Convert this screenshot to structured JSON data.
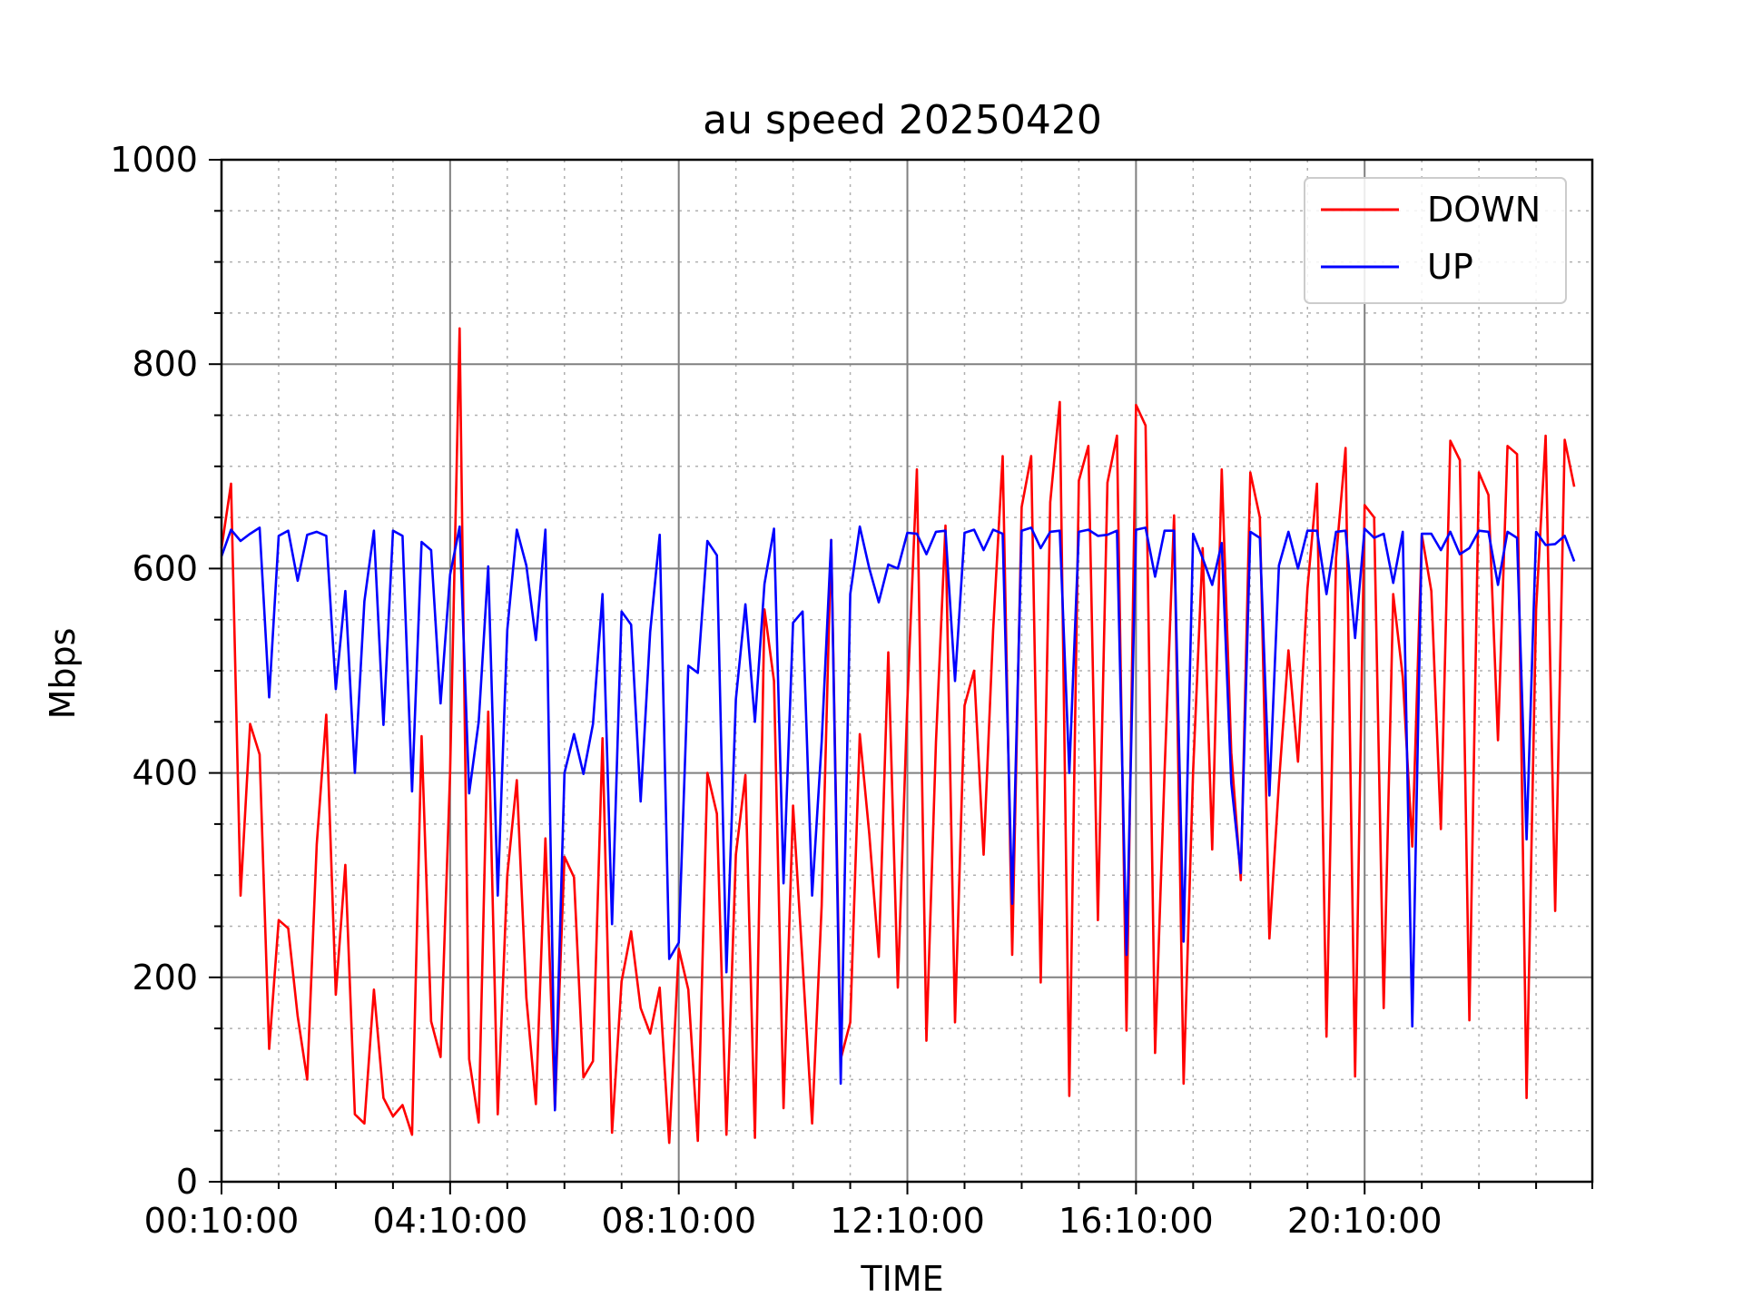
{
  "chart_data": {
    "type": "line",
    "title": "au speed 20250420",
    "xlabel": "TIME",
    "ylabel": "Mbps",
    "ylim": [
      0,
      1000
    ],
    "yticks": [
      0,
      200,
      400,
      600,
      800,
      1000
    ],
    "xticks": [
      "00:10:00",
      "04:10:00",
      "08:10:00",
      "12:10:00",
      "16:10:00",
      "20:10:00"
    ],
    "x_start": "00:10:00",
    "x_interval_minutes": 10,
    "legend_position": "top-right",
    "grid": true,
    "colors": {
      "DOWN": "#ff0000",
      "UP": "#0000ff"
    },
    "series": [
      {
        "name": "DOWN",
        "values": [
          620,
          683,
          280,
          448,
          418,
          130,
          256,
          248,
          162,
          100,
          330,
          457,
          183,
          310,
          66,
          57,
          188,
          82,
          64,
          75,
          46,
          436,
          157,
          122,
          400,
          835,
          120,
          58,
          460,
          66,
          300,
          393,
          180,
          76,
          336,
          72,
          318,
          298,
          102,
          118,
          434,
          48,
          196,
          245,
          170,
          145,
          190,
          38,
          228,
          188,
          40,
          400,
          360,
          46,
          320,
          398,
          43,
          560,
          490,
          72,
          368,
          214,
          57,
          270,
          628,
          120,
          156,
          438,
          340,
          220,
          518,
          190,
          470,
          697,
          138,
          430,
          642,
          156,
          466,
          500,
          320,
          540,
          710,
          222,
          660,
          710,
          195,
          665,
          763,
          84,
          686,
          720,
          256,
          684,
          730,
          148,
          760,
          740,
          126,
          400,
          652,
          96,
          402,
          620,
          325,
          697,
          420,
          295,
          694,
          650,
          238,
          390,
          520,
          411,
          580,
          683,
          142,
          610,
          718,
          103,
          662,
          650,
          170,
          575,
          494,
          328,
          633,
          578,
          345,
          725,
          706,
          158,
          694,
          672,
          432,
          720,
          712,
          82,
          560,
          730,
          265,
          726,
          680
        ]
      },
      {
        "name": "UP",
        "values": [
          612,
          638,
          627,
          634,
          640,
          474,
          632,
          637,
          588,
          633,
          636,
          632,
          482,
          578,
          400,
          568,
          637,
          447,
          637,
          632,
          382,
          626,
          618,
          468,
          594,
          641,
          380,
          450,
          602,
          280,
          540,
          638,
          603,
          530,
          638,
          70,
          400,
          438,
          399,
          448,
          575,
          252,
          558,
          545,
          372,
          538,
          633,
          218,
          234,
          505,
          498,
          627,
          613,
          205,
          472,
          565,
          450,
          585,
          639,
          292,
          547,
          558,
          280,
          430,
          628,
          96,
          575,
          641,
          600,
          567,
          604,
          600,
          635,
          634,
          614,
          636,
          637,
          490,
          635,
          638,
          618,
          638,
          634,
          272,
          637,
          640,
          620,
          636,
          637,
          400,
          636,
          638,
          632,
          633,
          637,
          222,
          638,
          640,
          592,
          637,
          637,
          235,
          634,
          610,
          584,
          625,
          390,
          302,
          636,
          630,
          378,
          603,
          636,
          600,
          637,
          637,
          575,
          636,
          637,
          532,
          639,
          630,
          634,
          586,
          636,
          152,
          634,
          634,
          618,
          636,
          614,
          620,
          637,
          636,
          584,
          636,
          630,
          335,
          636,
          623,
          624,
          632,
          607
        ]
      }
    ]
  }
}
